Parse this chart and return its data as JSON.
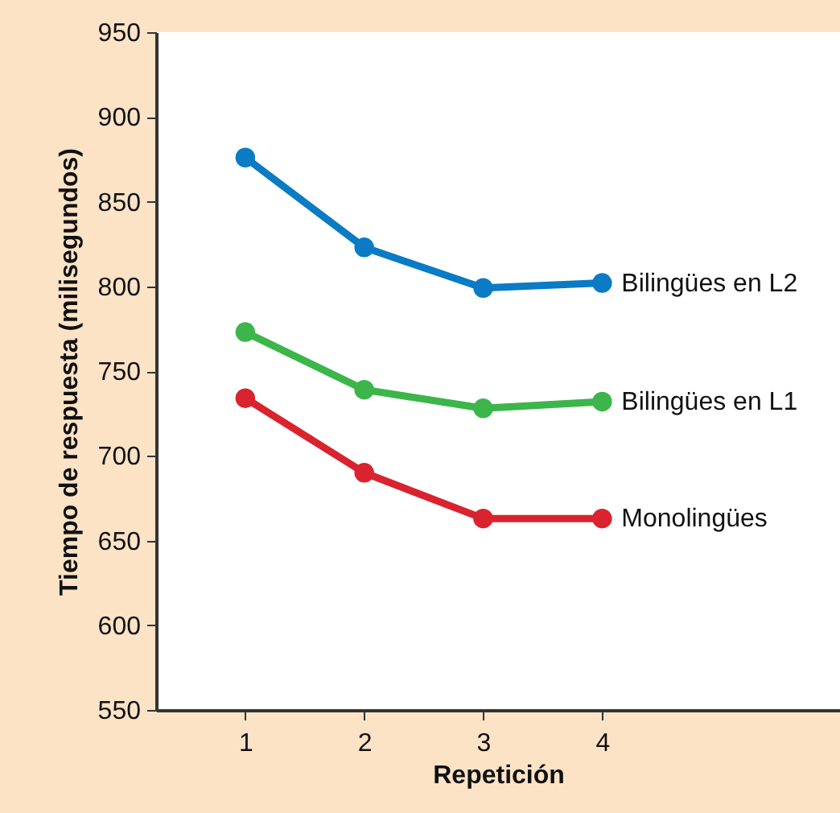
{
  "chart_data": {
    "type": "line",
    "xlabel": "Repetición",
    "ylabel": "Tiempo de respuesta (milisegundos)",
    "x": [
      1,
      2,
      3,
      4
    ],
    "xlim": [
      0.25,
      6
    ],
    "xticks": [
      1,
      2,
      3,
      4
    ],
    "ylim": [
      550,
      950
    ],
    "yticks": [
      550,
      600,
      650,
      700,
      750,
      800,
      850,
      900,
      950
    ],
    "grid": false,
    "legend": false,
    "marker": "circle",
    "line_style": "solid",
    "series": [
      {
        "name": "Bilingües en L2",
        "color": "#0a7bc4",
        "values": [
          876,
          823,
          799,
          802
        ]
      },
      {
        "name": "Bilingües en L1",
        "color": "#3cb54a",
        "values": [
          773,
          739,
          728,
          732
        ]
      },
      {
        "name": "Monolingües",
        "color": "#d9232e",
        "values": [
          734,
          690,
          663,
          663
        ]
      }
    ]
  }
}
